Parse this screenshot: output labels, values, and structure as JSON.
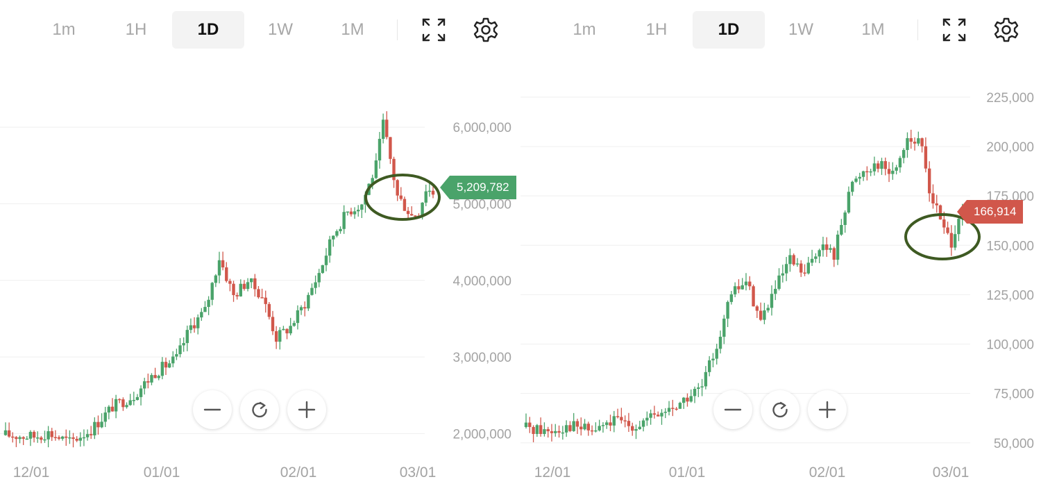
{
  "timeframes": [
    "1m",
    "1H",
    "1D",
    "1W",
    "1M"
  ],
  "active_timeframe": "1D",
  "icons": {
    "fullscreen": "fullscreen-icon",
    "settings": "gear-icon",
    "zoom_out": "minus-icon",
    "reset": "refresh-icon",
    "zoom_in": "plus-icon"
  },
  "colors": {
    "up": "#4aa36a",
    "down": "#d1574b",
    "grid": "#efefef",
    "axis_text": "#a3a3a3",
    "annotation": "#3e5a22"
  },
  "chart_data": [
    {
      "type": "candlestick",
      "x_ticks": [
        "12/01",
        "01/01",
        "02/01",
        "03/01"
      ],
      "y_ticks": [
        "2,000,000",
        "3,000,000",
        "4,000,000",
        "5,000,000",
        "6,000,000"
      ],
      "ylim": [
        1750000,
        6300000
      ],
      "current_price": "5,209,782",
      "current_price_value": 5209782,
      "price_tag_color": "#4aa36a",
      "annotation": "circled",
      "x_range": [
        "11/22",
        "03/04"
      ],
      "anchors": [
        [
          0,
          1980000
        ],
        [
          8,
          1960000
        ],
        [
          12,
          2010000
        ],
        [
          18,
          1890000
        ],
        [
          24,
          2050000
        ],
        [
          30,
          2350000
        ],
        [
          36,
          2500000
        ],
        [
          42,
          2800000
        ],
        [
          48,
          2980000
        ],
        [
          52,
          3400000
        ],
        [
          56,
          3600000
        ],
        [
          60,
          4300000
        ],
        [
          64,
          3800000
        ],
        [
          68,
          4000000
        ],
        [
          72,
          3800000
        ],
        [
          76,
          3250000
        ],
        [
          80,
          3400000
        ],
        [
          84,
          3700000
        ],
        [
          88,
          4100000
        ],
        [
          92,
          4600000
        ],
        [
          96,
          4900000
        ],
        [
          100,
          5000000
        ],
        [
          104,
          5500000
        ],
        [
          106,
          6050000
        ],
        [
          110,
          5100000
        ],
        [
          114,
          4850000
        ],
        [
          116,
          4900000
        ],
        [
          118,
          5200000
        ],
        [
          120,
          5150000
        ]
      ]
    },
    {
      "type": "candlestick",
      "x_ticks": [
        "12/01",
        "01/01",
        "02/01",
        "03/01"
      ],
      "y_ticks": [
        "50,000",
        "75,000",
        "100,000",
        "125,000",
        "150,000",
        "175,000",
        "200,000",
        "225,000"
      ],
      "ylim": [
        45000,
        232000
      ],
      "current_price": "166,914",
      "current_price_value": 166914,
      "price_tag_color": "#d1574b",
      "annotation": "circled",
      "x_range": [
        "11/22",
        "03/04"
      ],
      "anchors": [
        [
          0,
          58000
        ],
        [
          6,
          56000
        ],
        [
          12,
          59000
        ],
        [
          18,
          56000
        ],
        [
          24,
          61000
        ],
        [
          30,
          59000
        ],
        [
          36,
          64000
        ],
        [
          42,
          70000
        ],
        [
          48,
          78000
        ],
        [
          52,
          100000
        ],
        [
          56,
          125000
        ],
        [
          60,
          132000
        ],
        [
          64,
          112000
        ],
        [
          68,
          128000
        ],
        [
          72,
          142000
        ],
        [
          76,
          135000
        ],
        [
          80,
          150000
        ],
        [
          84,
          145000
        ],
        [
          88,
          178000
        ],
        [
          92,
          188000
        ],
        [
          96,
          192000
        ],
        [
          100,
          186000
        ],
        [
          104,
          205000
        ],
        [
          108,
          200000
        ],
        [
          110,
          178000
        ],
        [
          114,
          158000
        ],
        [
          116,
          152000
        ],
        [
          118,
          165000
        ],
        [
          120,
          167000
        ]
      ]
    }
  ]
}
